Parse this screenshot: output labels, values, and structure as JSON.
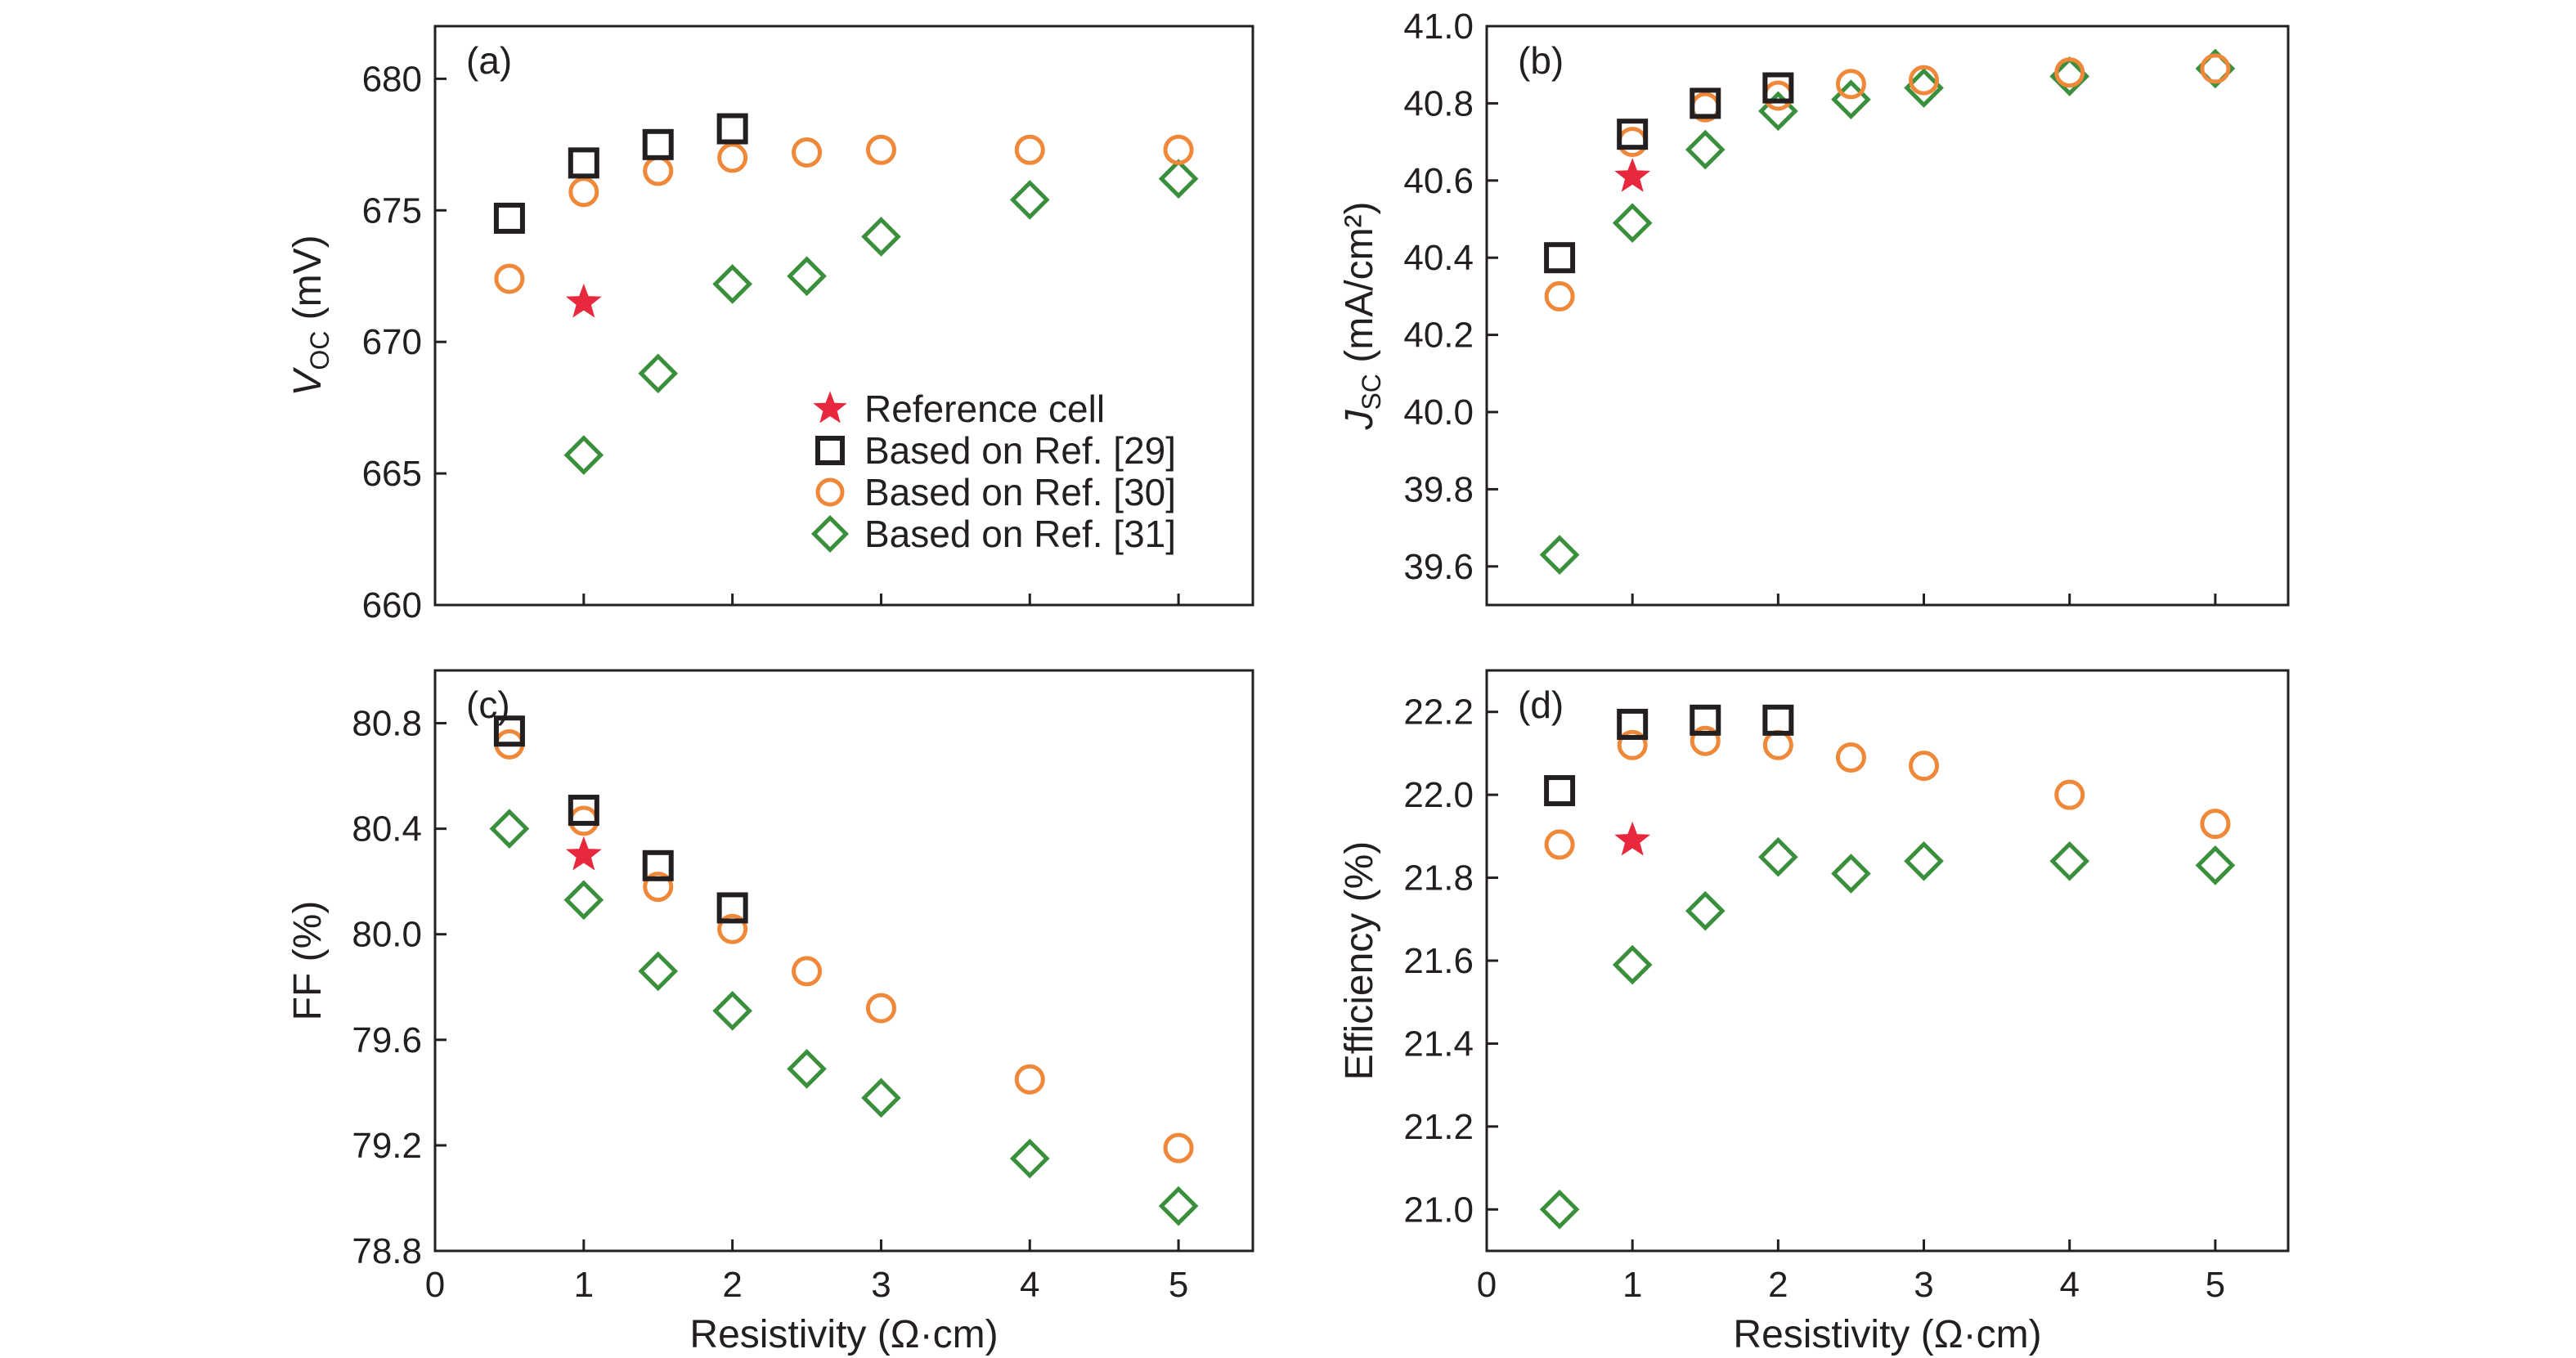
{
  "figure": {
    "x_axis_title": "Resistivity (Ω·cm)"
  },
  "legend": [
    {
      "key": "ref",
      "label": "Reference cell"
    },
    {
      "key": "r29",
      "label": "Based on Ref. [29]"
    },
    {
      "key": "r30",
      "label": "Based on Ref. [30]"
    },
    {
      "key": "r31",
      "label": "Based on Ref. [31]"
    }
  ],
  "series_style": {
    "ref": {
      "marker": "star",
      "color": "#e8283c"
    },
    "r29": {
      "marker": "square",
      "color": "#231f20"
    },
    "r30": {
      "marker": "circle",
      "color": "#f0883a"
    },
    "r31": {
      "marker": "diamond",
      "color": "#3a8f3c"
    }
  },
  "chart_data": [
    {
      "panel": "a",
      "tag": "(a)",
      "type": "scatter",
      "ylabel_main": "V",
      "ylabel_sub": "OC",
      "ylabel_unit": " (mV)",
      "xlabel": "",
      "xlim": [
        0,
        5.5
      ],
      "ylim": [
        660,
        682
      ],
      "xticks": [
        0,
        1,
        2,
        3,
        4,
        5
      ],
      "yticks": [
        660,
        665,
        670,
        675,
        680
      ],
      "ytick_labels": [
        "660",
        "665",
        "670",
        "675",
        "680"
      ],
      "show_x_tick_labels": false,
      "series": [
        {
          "key": "ref",
          "x": [
            1
          ],
          "y": [
            671.5
          ]
        },
        {
          "key": "r29",
          "x": [
            0.5,
            1,
            1.5,
            2
          ],
          "y": [
            674.7,
            676.8,
            677.5,
            678.1
          ]
        },
        {
          "key": "r30",
          "x": [
            0.5,
            1,
            1.5,
            2,
            2.5,
            3,
            4,
            5
          ],
          "y": [
            672.4,
            675.7,
            676.5,
            677.0,
            677.2,
            677.3,
            677.3,
            677.3
          ]
        },
        {
          "key": "r31",
          "x": [
            1,
            1.5,
            2,
            2.5,
            3,
            4,
            5
          ],
          "y": [
            665.7,
            668.8,
            672.2,
            672.5,
            674.0,
            675.4,
            676.2
          ]
        }
      ]
    },
    {
      "panel": "b",
      "tag": "(b)",
      "type": "scatter",
      "ylabel_main": "J",
      "ylabel_sub": "SC",
      "ylabel_unit": " (mA/cm²)",
      "xlabel": "",
      "xlim": [
        0,
        5.5
      ],
      "ylim": [
        39.5,
        41.0
      ],
      "xticks": [
        0,
        1,
        2,
        3,
        4,
        5
      ],
      "yticks": [
        39.6,
        39.8,
        40.0,
        40.2,
        40.4,
        40.6,
        40.8,
        41.0
      ],
      "ytick_labels": [
        "39.6",
        "39.8",
        "40.0",
        "40.2",
        "40.4",
        "40.6",
        "40.8",
        "41.0"
      ],
      "show_x_tick_labels": false,
      "series": [
        {
          "key": "ref",
          "x": [
            1
          ],
          "y": [
            40.61
          ]
        },
        {
          "key": "r29",
          "x": [
            0.5,
            1,
            1.5,
            2
          ],
          "y": [
            40.4,
            40.72,
            40.8,
            40.84
          ]
        },
        {
          "key": "r30",
          "x": [
            0.5,
            1,
            1.5,
            2,
            2.5,
            3,
            4,
            5
          ],
          "y": [
            40.3,
            40.7,
            40.79,
            40.82,
            40.85,
            40.86,
            40.88,
            40.89
          ]
        },
        {
          "key": "r31",
          "x": [
            0.5,
            1,
            1.5,
            2,
            2.5,
            3,
            4,
            5
          ],
          "y": [
            39.63,
            40.49,
            40.68,
            40.78,
            40.81,
            40.84,
            40.87,
            40.89
          ]
        }
      ]
    },
    {
      "panel": "c",
      "tag": "(c)",
      "type": "scatter",
      "ylabel_main": "FF (%)",
      "ylabel_sub": "",
      "ylabel_unit": "",
      "xlabel": "Resistivity (Ω·cm)",
      "xlim": [
        0,
        5.5
      ],
      "ylim": [
        78.8,
        81.0
      ],
      "xticks": [
        0,
        1,
        2,
        3,
        4,
        5
      ],
      "yticks": [
        78.8,
        79.2,
        79.6,
        80.0,
        80.4,
        80.8
      ],
      "ytick_labels": [
        "78.8",
        "79.2",
        "79.6",
        "80.0",
        "80.4",
        "80.8"
      ],
      "show_x_tick_labels": true,
      "series": [
        {
          "key": "ref",
          "x": [
            1
          ],
          "y": [
            80.3
          ]
        },
        {
          "key": "r29",
          "x": [
            0.5,
            1,
            1.5,
            2
          ],
          "y": [
            80.77,
            80.47,
            80.26,
            80.1
          ]
        },
        {
          "key": "r30",
          "x": [
            0.5,
            1,
            1.5,
            2,
            2.5,
            3,
            4,
            5
          ],
          "y": [
            80.72,
            80.43,
            80.18,
            80.02,
            79.86,
            79.72,
            79.45,
            79.19
          ]
        },
        {
          "key": "r31",
          "x": [
            0.5,
            1,
            1.5,
            2,
            2.5,
            3,
            4,
            5
          ],
          "y": [
            80.4,
            80.13,
            79.86,
            79.71,
            79.49,
            79.38,
            79.15,
            78.97
          ]
        }
      ]
    },
    {
      "panel": "d",
      "tag": "(d)",
      "type": "scatter",
      "ylabel_main": "Efficiency (%)",
      "ylabel_sub": "",
      "ylabel_unit": "",
      "xlabel": "Resistivity (Ω·cm)",
      "xlim": [
        0,
        5.5
      ],
      "ylim": [
        20.9,
        22.3
      ],
      "xticks": [
        0,
        1,
        2,
        3,
        4,
        5
      ],
      "yticks": [
        21.0,
        21.2,
        21.4,
        21.6,
        21.8,
        22.0,
        22.2
      ],
      "ytick_labels": [
        "21.0",
        "21.2",
        "21.4",
        "21.6",
        "21.8",
        "22.0",
        "22.2"
      ],
      "show_x_tick_labels": true,
      "series": [
        {
          "key": "ref",
          "x": [
            1
          ],
          "y": [
            21.89
          ]
        },
        {
          "key": "r29",
          "x": [
            0.5,
            1,
            1.5,
            2
          ],
          "y": [
            22.01,
            22.17,
            22.18,
            22.18
          ]
        },
        {
          "key": "r30",
          "x": [
            0.5,
            1,
            1.5,
            2,
            2.5,
            3,
            4,
            5
          ],
          "y": [
            21.88,
            22.12,
            22.13,
            22.12,
            22.09,
            22.07,
            22.0,
            21.93
          ]
        },
        {
          "key": "r31",
          "x": [
            0.5,
            1,
            1.5,
            2,
            2.5,
            3,
            4,
            5
          ],
          "y": [
            21.0,
            21.59,
            21.72,
            21.85,
            21.81,
            21.84,
            21.84,
            21.83
          ]
        }
      ]
    }
  ]
}
